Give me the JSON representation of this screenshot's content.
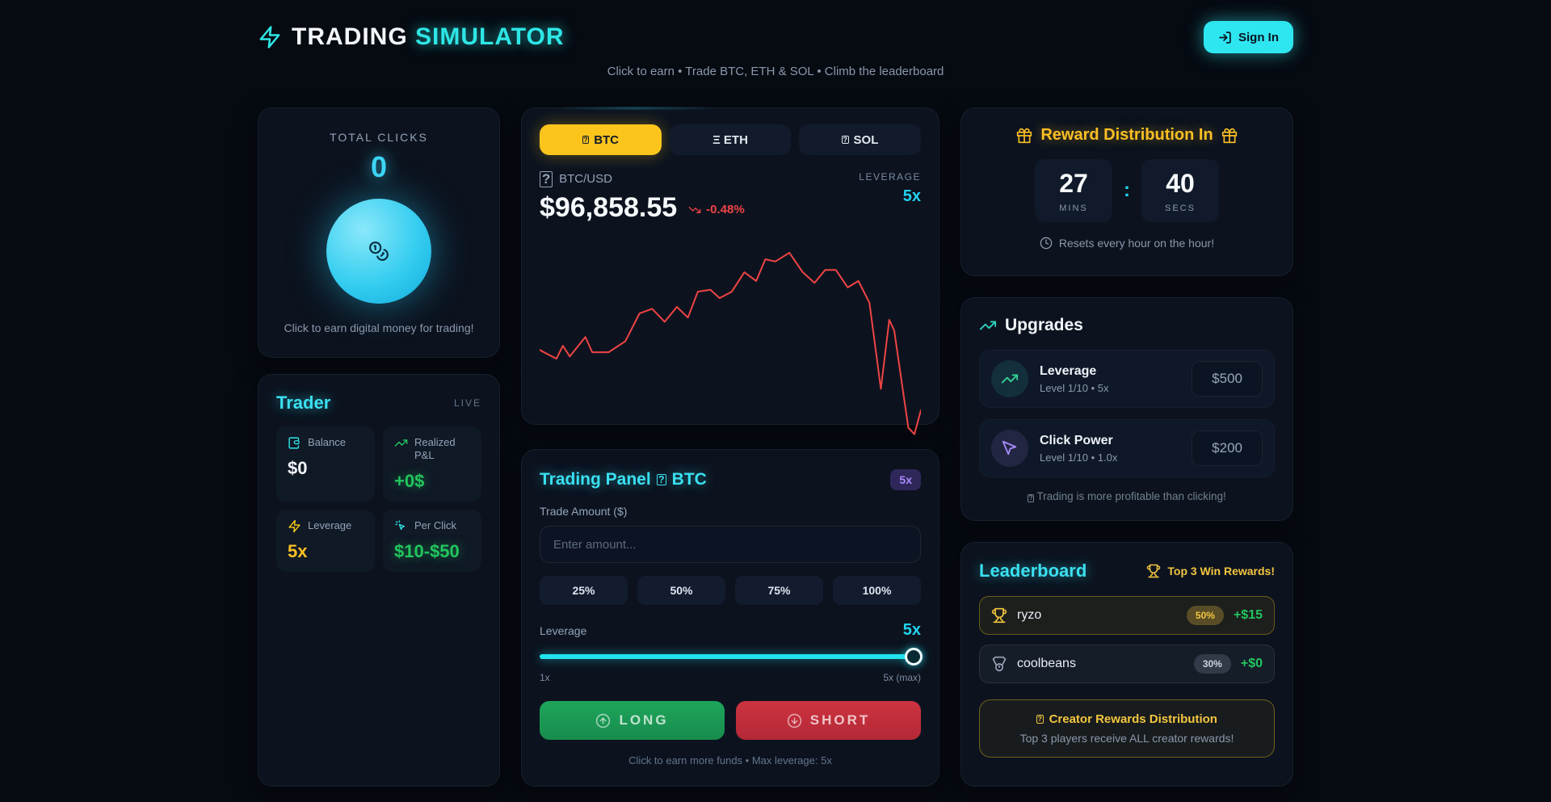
{
  "header": {
    "title_primary": "TRADING",
    "title_accent": "SIMULATOR",
    "sign_in_label": "Sign In",
    "subtitle": "Click to earn • Trade BTC, ETH & SOL • Climb the leaderboard"
  },
  "clicker": {
    "label": "TOTAL CLICKS",
    "count": "0",
    "caption": "Click to earn digital money for trading!"
  },
  "trader": {
    "title": "Trader",
    "live_label": "LIVE",
    "stats": [
      {
        "label": "Balance",
        "value": "$0"
      },
      {
        "label": "Realized P&L",
        "value": "+0$"
      },
      {
        "label": "Leverage",
        "value": "5x"
      },
      {
        "label": "Per Click",
        "value": "$10-$50"
      }
    ]
  },
  "market": {
    "tabs": [
      {
        "label": "BTC",
        "active": true
      },
      {
        "label": "Ξ ETH",
        "active": false
      },
      {
        "label": "SOL",
        "active": false
      }
    ],
    "pair": "BTC/USD",
    "price": "$96,858.55",
    "change": "-0.48%",
    "leverage_label": "LEVERAGE",
    "leverage_value": "5x"
  },
  "chart_data": {
    "type": "line",
    "name": "BTC/USD price",
    "color": "#ef4444",
    "grid": false,
    "axes_visible": false,
    "ylim": [
      96600,
      98100
    ],
    "points": [
      [
        0,
        97325
      ],
      [
        4.4,
        97268
      ],
      [
        6.1,
        97353
      ],
      [
        7.9,
        97283
      ],
      [
        12,
        97410
      ],
      [
        13.8,
        97311
      ],
      [
        18.1,
        97311
      ],
      [
        22.5,
        97382
      ],
      [
        26.2,
        97566
      ],
      [
        29.5,
        97594
      ],
      [
        32.8,
        97509
      ],
      [
        36,
        97608
      ],
      [
        38.9,
        97537
      ],
      [
        41.5,
        97707
      ],
      [
        44.8,
        97721
      ],
      [
        47.2,
        97665
      ],
      [
        50.4,
        97707
      ],
      [
        53.7,
        97834
      ],
      [
        56.8,
        97778
      ],
      [
        59.2,
        97919
      ],
      [
        61.8,
        97905
      ],
      [
        65.5,
        97962
      ],
      [
        69,
        97834
      ],
      [
        72.1,
        97764
      ],
      [
        74.9,
        97849
      ],
      [
        77.7,
        97849
      ],
      [
        80.8,
        97735
      ],
      [
        83.6,
        97778
      ],
      [
        86.5,
        97636
      ],
      [
        89.5,
        97070
      ],
      [
        91.7,
        97523
      ],
      [
        93,
        97452
      ],
      [
        96.7,
        96816
      ],
      [
        98.3,
        96773
      ],
      [
        100,
        96929
      ]
    ]
  },
  "trading_panel": {
    "title": "Trading Panel",
    "title_asset": "BTC",
    "badge": "5x",
    "amount_label": "Trade Amount ($)",
    "amount_placeholder": "Enter amount...",
    "percent_buttons": [
      "25%",
      "50%",
      "75%",
      "100%"
    ],
    "leverage_label": "Leverage",
    "leverage_value": "5x",
    "slider_min_label": "1x",
    "slider_max_label": "5x (max)",
    "long_label": "LONG",
    "short_label": "SHORT",
    "footnote": "Click to earn more funds • Max leverage: 5x"
  },
  "reward": {
    "title": "Reward Distribution In",
    "minutes": "27",
    "minutes_unit": "MINS",
    "colon": ":",
    "seconds": "40",
    "seconds_unit": "SECS",
    "note": "Resets every hour on the hour!"
  },
  "upgrades": {
    "title": "Upgrades",
    "items": [
      {
        "name": "Leverage",
        "detail": "Level 1/10 • 5x",
        "price": "$500"
      },
      {
        "name": "Click Power",
        "detail": "Level 1/10 • 1.0x",
        "price": "$200"
      }
    ],
    "note": "Trading is more profitable than clicking!"
  },
  "leaderboard": {
    "title": "Leaderboard",
    "rewards_note": "Top 3 Win Rewards!",
    "rows": [
      {
        "name": "ryzo",
        "share": "50%",
        "amount": "+$15"
      },
      {
        "name": "coolbeans",
        "share": "30%",
        "amount": "+$0"
      }
    ],
    "creator_title": "Creator Rewards Distribution",
    "creator_note": "Top 3 players receive ALL creator rewards!"
  },
  "icons": {
    "tofu_glyph": "?"
  },
  "colors": {
    "accent_cyan": "#2ee6e6",
    "accent_gold": "#fbc51c",
    "long_green": "#1ea55b",
    "short_red": "#cd3340",
    "chart_red": "#ef4444",
    "pnl_green": "#22c55e",
    "badge_purple": "#a78bfa"
  }
}
